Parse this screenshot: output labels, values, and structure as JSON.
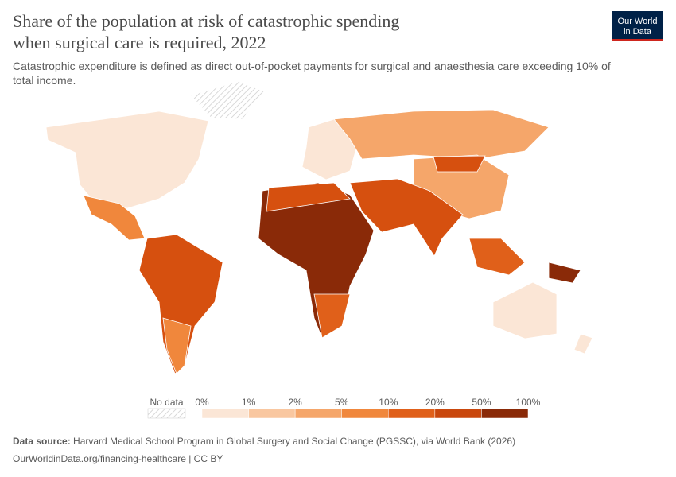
{
  "header": {
    "title": "Share of the population at risk of catastrophic spending when surgical care is required, 2022",
    "subtitle": "Catastrophic expenditure is defined as direct out-of-pocket payments for surgical and anaesthesia care exceeding 10% of total income."
  },
  "logo": {
    "line1": "Our World",
    "line2": "in Data"
  },
  "legend": {
    "no_data": "No data",
    "ticks": [
      "0%",
      "1%",
      "2%",
      "5%",
      "10%",
      "20%",
      "50%",
      "100%"
    ],
    "colors": [
      "#fbe6d6",
      "#f9c7a0",
      "#f5a66a",
      "#f0873c",
      "#e0601a",
      "#c9470d",
      "#8a2a08"
    ]
  },
  "footer": {
    "source_label": "Data source:",
    "source": "Harvard Medical School Program in Global Surgery and Social Change (PGSSC), via World Bank (2026)",
    "url": "OurWorldinData.org/financing-healthcare | CC BY"
  }
}
